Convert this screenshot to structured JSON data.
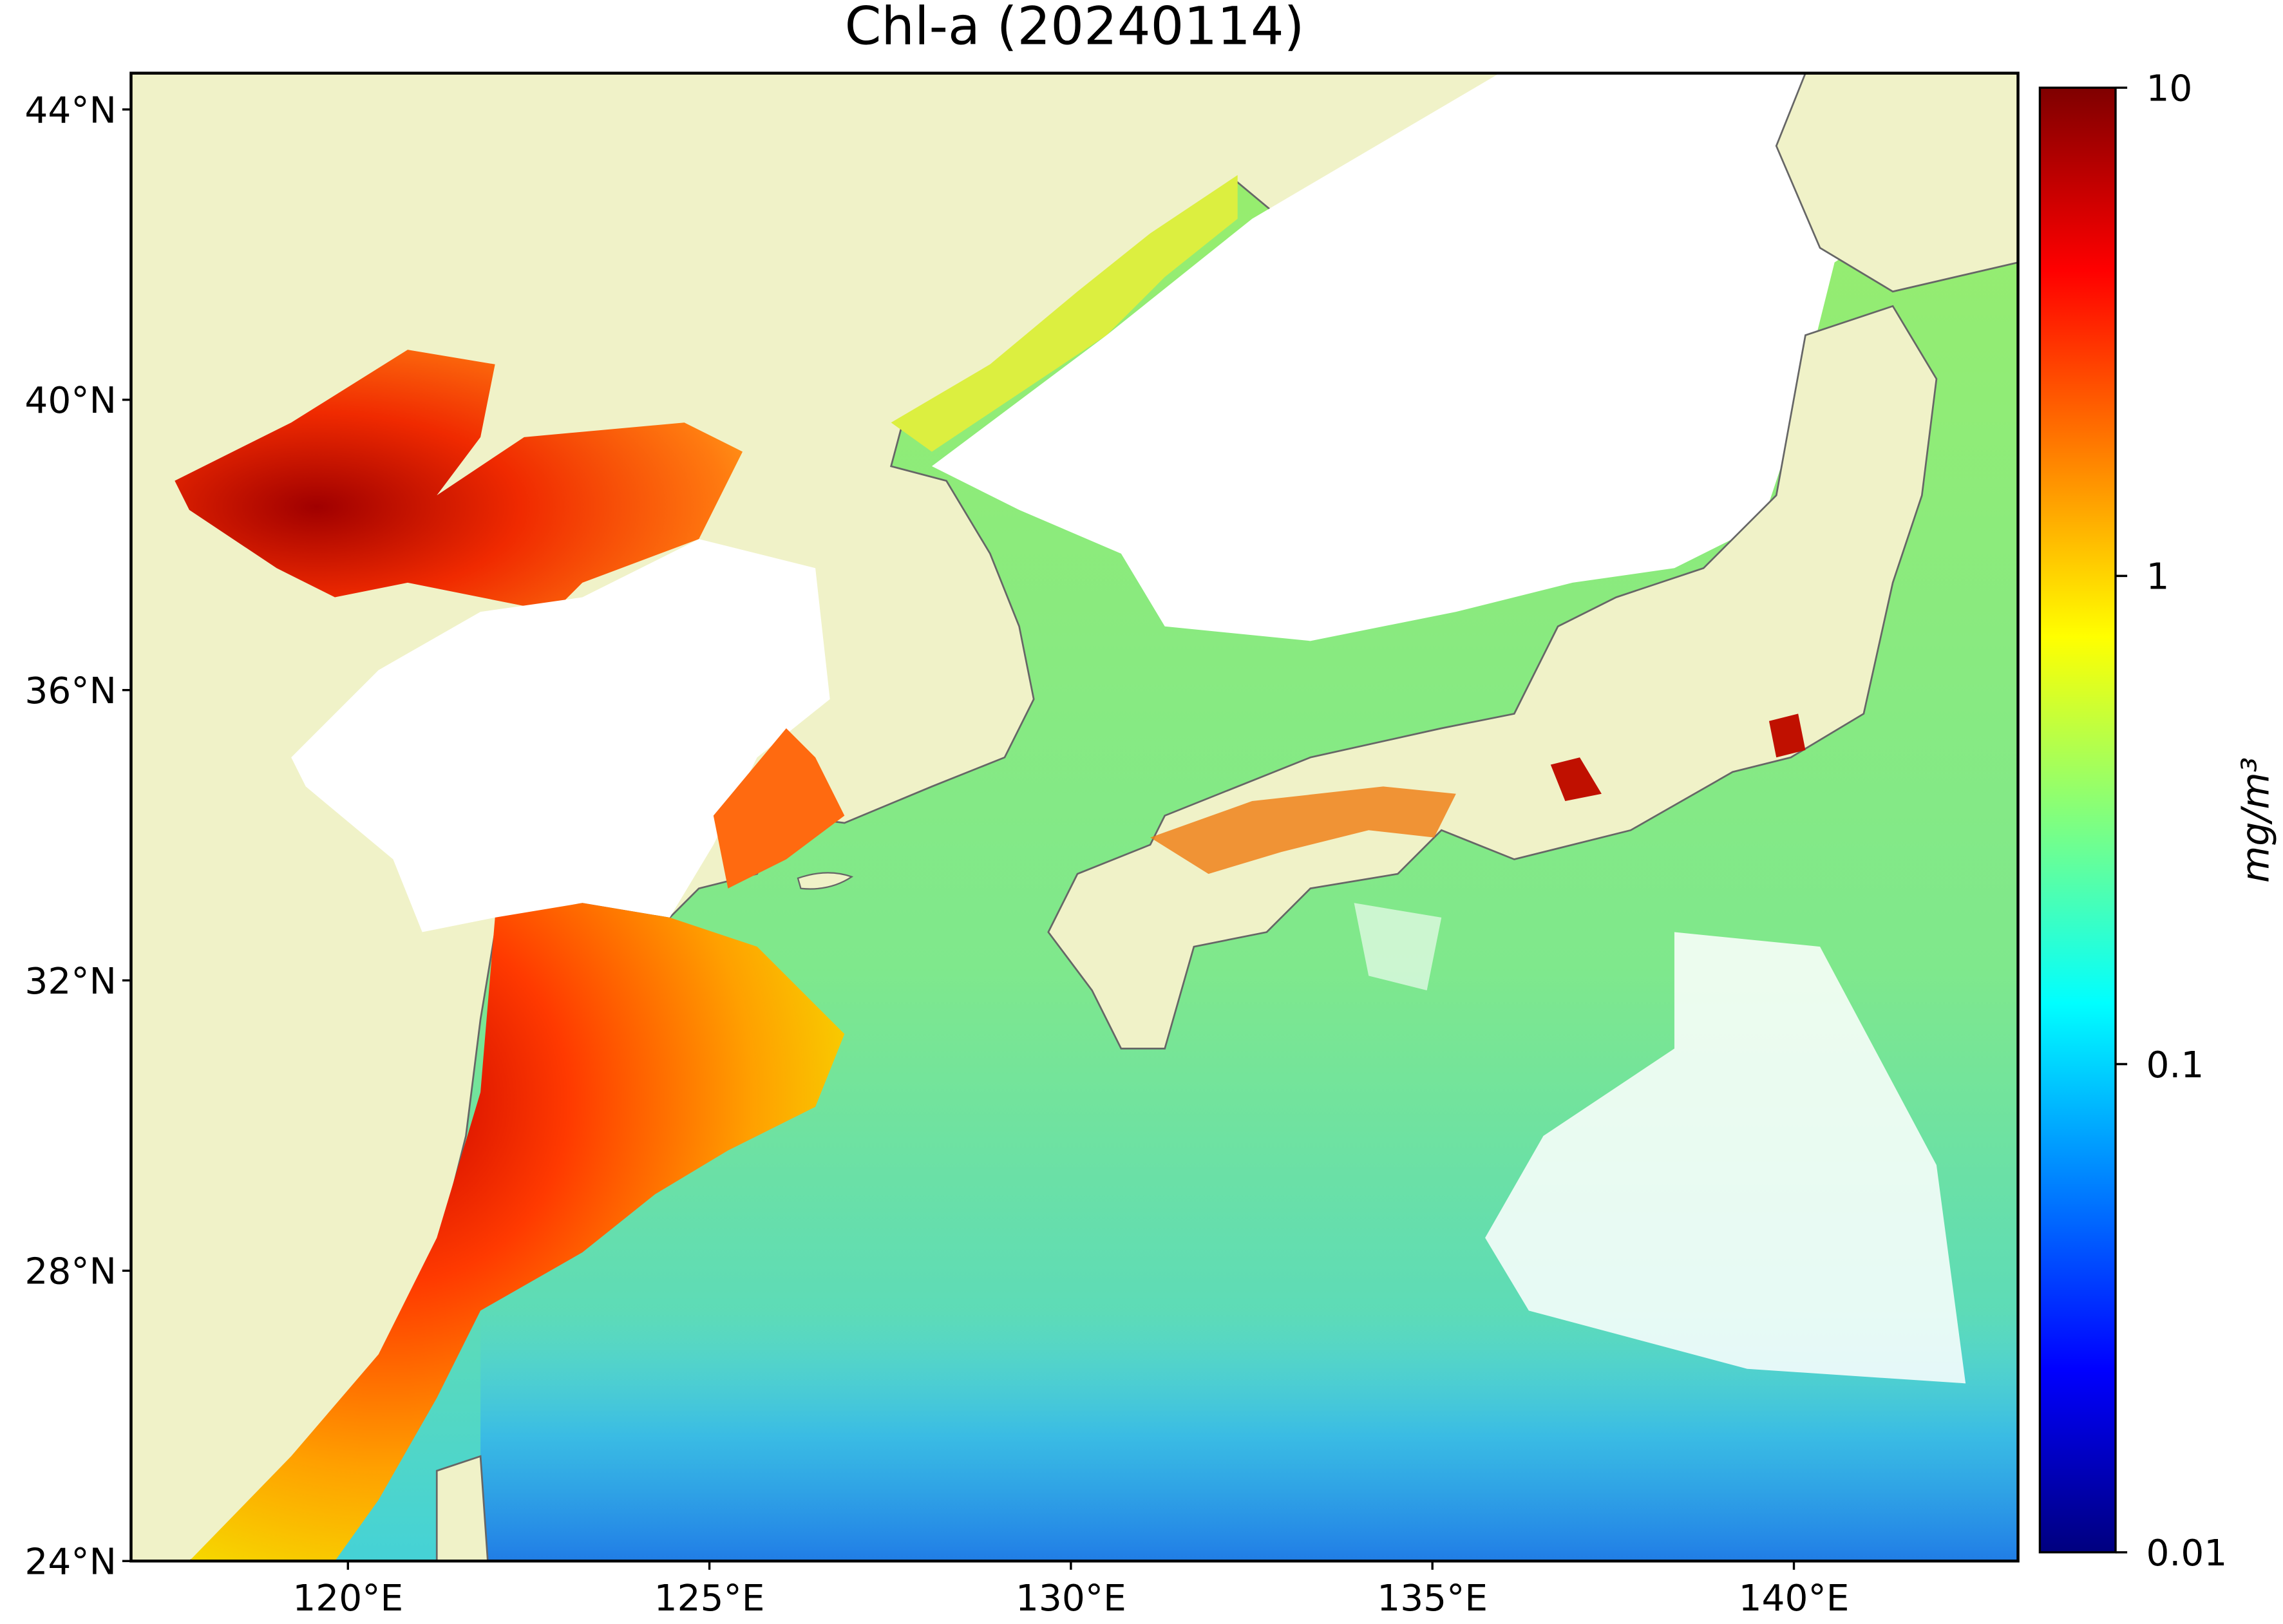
{
  "map": {
    "title": "Chl-a (20240114)",
    "lon_range": [
      117,
      143.1
    ],
    "lat_range": [
      24,
      44.5
    ],
    "lon_ticks": [
      {
        "value": 120,
        "label": "120°E"
      },
      {
        "value": 125,
        "label": "125°E"
      },
      {
        "value": 130,
        "label": "130°E"
      },
      {
        "value": 135,
        "label": "135°E"
      },
      {
        "value": 140,
        "label": "140°E"
      }
    ],
    "lat_ticks": [
      {
        "value": 24,
        "label": "24°N"
      },
      {
        "value": 28,
        "label": "28°N"
      },
      {
        "value": 32,
        "label": "32°N"
      },
      {
        "value": 36,
        "label": "36°N"
      },
      {
        "value": 40,
        "label": "40°N"
      },
      {
        "value": 44,
        "label": "44°N"
      }
    ],
    "colorbar": {
      "label": "mg/m³",
      "range": [
        0.01,
        10
      ],
      "log_scale": true,
      "ticks": [
        0.01,
        0.1,
        1,
        10
      ]
    }
  }
}
